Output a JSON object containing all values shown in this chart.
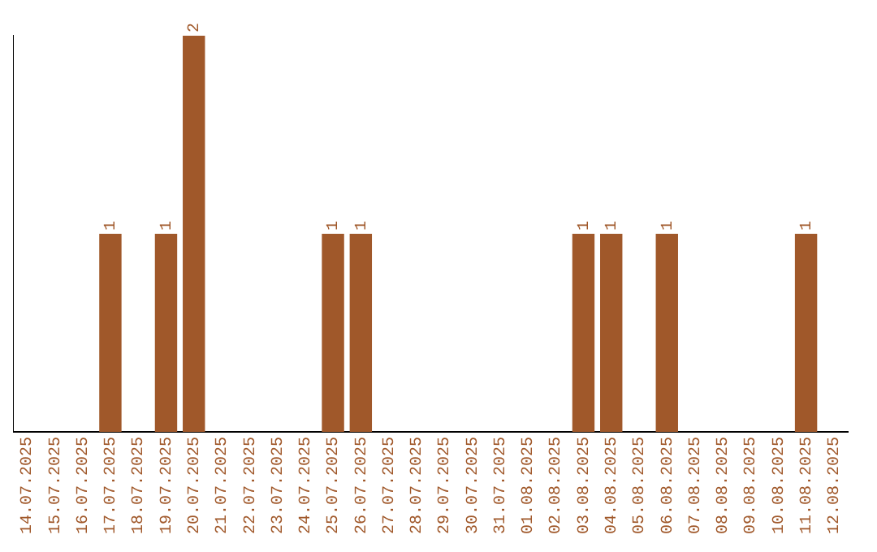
{
  "chart_data": {
    "type": "bar",
    "categories": [
      "14.07.2025",
      "15.07.2025",
      "16.07.2025",
      "17.07.2025",
      "18.07.2025",
      "19.07.2025",
      "20.07.2025",
      "21.07.2025",
      "22.07.2025",
      "23.07.2025",
      "24.07.2025",
      "25.07.2025",
      "26.07.2025",
      "27.07.2025",
      "28.07.2025",
      "29.07.2025",
      "30.07.2025",
      "31.07.2025",
      "01.08.2025",
      "02.08.2025",
      "03.08.2025",
      "04.08.2025",
      "05.08.2025",
      "06.08.2025",
      "07.08.2025",
      "08.08.2025",
      "09.08.2025",
      "10.08.2025",
      "11.08.2025",
      "12.08.2025"
    ],
    "values": [
      0,
      0,
      0,
      1,
      0,
      1,
      2,
      0,
      0,
      0,
      0,
      1,
      1,
      0,
      0,
      0,
      0,
      0,
      0,
      0,
      1,
      1,
      0,
      1,
      0,
      0,
      0,
      0,
      1,
      0
    ],
    "value_labels": [
      null,
      null,
      null,
      "1",
      null,
      "1",
      "2",
      null,
      null,
      null,
      null,
      "1",
      "1",
      null,
      null,
      null,
      null,
      null,
      null,
      null,
      "1",
      "1",
      null,
      "1",
      null,
      null,
      null,
      null,
      "1",
      null
    ],
    "color": "#a0582a",
    "grid": false,
    "tick_labels": "x"
  }
}
